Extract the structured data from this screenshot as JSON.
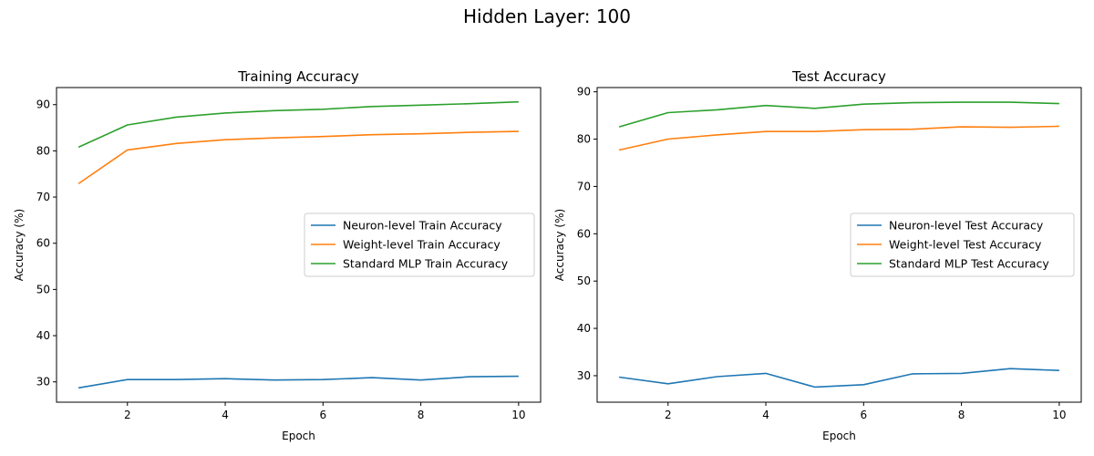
{
  "figure": {
    "title": "Hidden Layer: 100"
  },
  "chart_data": [
    {
      "type": "line",
      "title": "Training Accuracy",
      "xlabel": "Epoch",
      "ylabel": "Accuracy (%)",
      "x": [
        1,
        2,
        3,
        4,
        5,
        6,
        7,
        8,
        9,
        10
      ],
      "xlim": [
        0.55,
        10.45
      ],
      "ylim": [
        25.6,
        93.7
      ],
      "xticks": [
        2,
        4,
        6,
        8,
        10
      ],
      "yticks": [
        30,
        40,
        50,
        60,
        70,
        80,
        90
      ],
      "grid": false,
      "legend_position": "center-right",
      "series": [
        {
          "name": "Neuron-level Train Accuracy",
          "color": "#1f77b4",
          "values": [
            28.7,
            30.5,
            30.5,
            30.7,
            30.4,
            30.5,
            30.9,
            30.4,
            31.1,
            31.2
          ]
        },
        {
          "name": "Weight-level Train Accuracy",
          "color": "#ff7f0e",
          "values": [
            72.9,
            80.2,
            81.6,
            82.4,
            82.8,
            83.1,
            83.5,
            83.7,
            84.0,
            84.2
          ]
        },
        {
          "name": "Standard MLP Train Accuracy",
          "color": "#2ca02c",
          "values": [
            80.8,
            85.6,
            87.3,
            88.2,
            88.7,
            89.0,
            89.6,
            89.9,
            90.2,
            90.6
          ]
        }
      ]
    },
    {
      "type": "line",
      "title": "Test Accuracy",
      "xlabel": "Epoch",
      "ylabel": "Accuracy (%)",
      "x": [
        1,
        2,
        3,
        4,
        5,
        6,
        7,
        8,
        9,
        10
      ],
      "xlim": [
        0.55,
        10.45
      ],
      "ylim": [
        24.4,
        90.9
      ],
      "xticks": [
        2,
        4,
        6,
        8,
        10
      ],
      "yticks": [
        30,
        40,
        50,
        60,
        70,
        80,
        90
      ],
      "grid": false,
      "legend_position": "center-right",
      "series": [
        {
          "name": "Neuron-level Test Accuracy",
          "color": "#1f77b4",
          "values": [
            29.7,
            28.3,
            29.8,
            30.5,
            27.6,
            28.1,
            30.4,
            30.5,
            31.5,
            31.1
          ]
        },
        {
          "name": "Weight-level Test Accuracy",
          "color": "#ff7f0e",
          "values": [
            77.7,
            80.0,
            80.9,
            81.6,
            81.6,
            82.0,
            82.1,
            82.6,
            82.5,
            82.7
          ]
        },
        {
          "name": "Standard MLP Test Accuracy",
          "color": "#2ca02c",
          "values": [
            82.6,
            85.6,
            86.2,
            87.1,
            86.5,
            87.4,
            87.7,
            87.8,
            87.8,
            87.5
          ]
        }
      ]
    }
  ]
}
